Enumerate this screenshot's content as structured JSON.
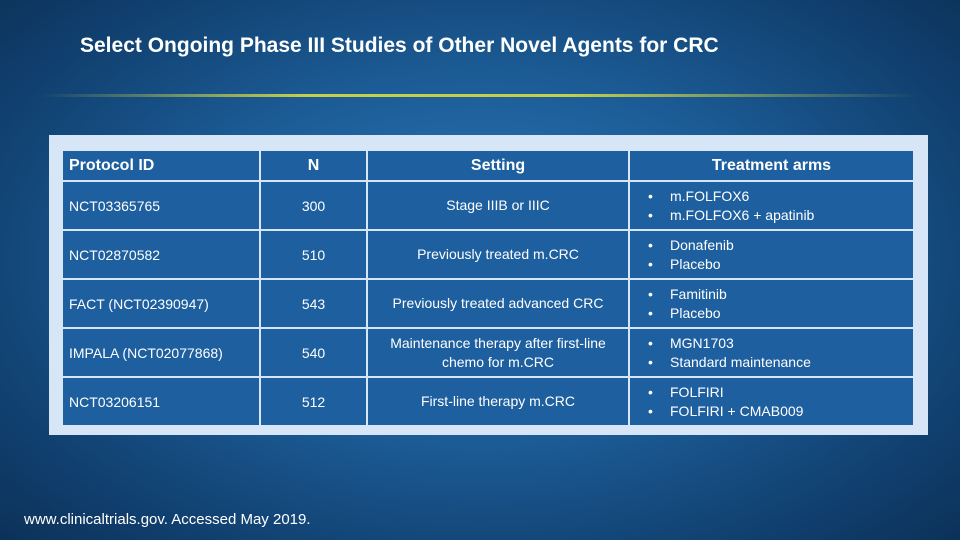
{
  "slide": {
    "title": "Select Ongoing Phase III Studies of Other Novel Agents for CRC",
    "footer": "www.clinicaltrials.gov. Accessed May 2019.",
    "colors": {
      "cell": "#1d5f9f",
      "frame": "#d6e6f7",
      "accent_rule": "#cdd646"
    }
  },
  "table": {
    "headers": [
      "Protocol ID",
      "N",
      "Setting",
      "Treatment arms"
    ],
    "rows": [
      {
        "id": "NCT03365765",
        "n": "300",
        "setting": "Stage IIIB or IIIC",
        "arms": [
          "m.FOLFOX6",
          "m.FOLFOX6 + apatinib"
        ]
      },
      {
        "id": "NCT02870582",
        "n": "510",
        "setting": "Previously treated m.CRC",
        "arms": [
          "Donafenib",
          "Placebo"
        ]
      },
      {
        "id": "FACT (NCT02390947)",
        "n": "543",
        "setting": "Previously treated advanced CRC",
        "arms": [
          "Famitinib",
          "Placebo"
        ]
      },
      {
        "id": "IMPALA (NCT02077868)",
        "n": "540",
        "setting": "Maintenance therapy after first-line chemo for m.CRC",
        "arms": [
          "MGN1703",
          "Standard maintenance"
        ]
      },
      {
        "id": "NCT03206151",
        "n": "512",
        "setting": "First-line therapy m.CRC",
        "arms": [
          "FOLFIRI",
          "FOLFIRI + CMAB009"
        ]
      }
    ]
  }
}
